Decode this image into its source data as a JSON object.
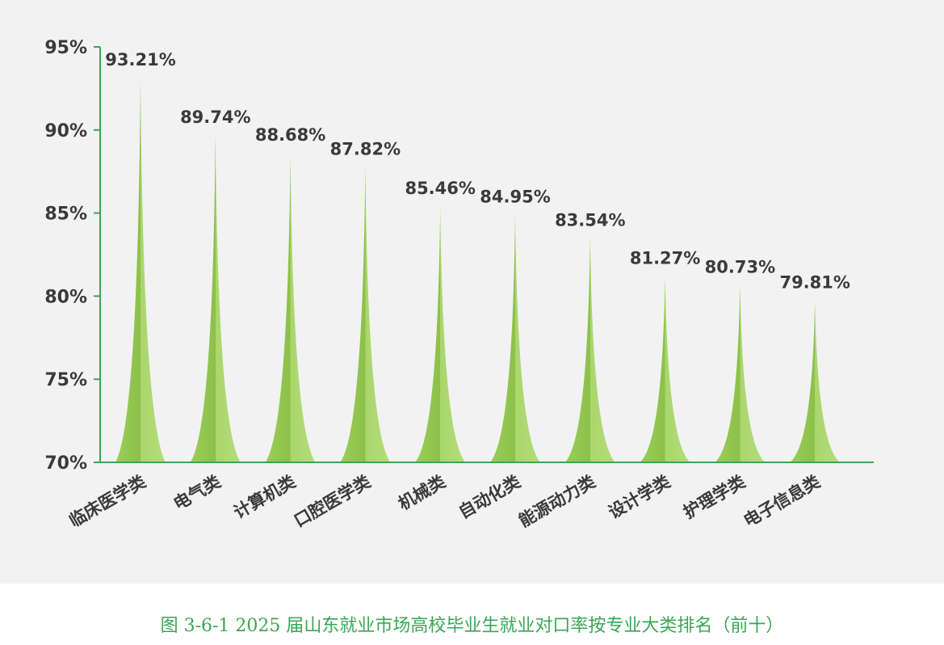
{
  "caption": "图 3-6-1 2025 届山东就业市场高校毕业生就业对口率按专业大类排名（前十）",
  "colors": {
    "background": "#f2f2f2",
    "axis": "#3aa655",
    "spike_light": "#a9d46a",
    "spike_dark": "#94c752",
    "text": "#3a3a3a",
    "caption": "#3aa655"
  },
  "chart_data": {
    "type": "bar",
    "title": "",
    "xlabel": "",
    "ylabel": "",
    "ylim": [
      70,
      95
    ],
    "yticks": [
      70,
      75,
      80,
      85,
      90,
      95
    ],
    "ytick_labels": [
      "70%",
      "75%",
      "80%",
      "85%",
      "90%",
      "95%"
    ],
    "grid": false,
    "categories": [
      "临床医学类",
      "电气类",
      "计算机类",
      "口腔医学类",
      "机械类",
      "自动化类",
      "能源动力类",
      "设计学类",
      "护理学类",
      "电子信息类"
    ],
    "values": [
      93.21,
      89.74,
      88.68,
      87.82,
      85.46,
      84.95,
      83.54,
      81.27,
      80.73,
      79.81
    ],
    "value_labels": [
      "93.21%",
      "89.74%",
      "88.68%",
      "87.82%",
      "85.46%",
      "84.95%",
      "83.54%",
      "81.27%",
      "80.73%",
      "79.81%"
    ]
  }
}
